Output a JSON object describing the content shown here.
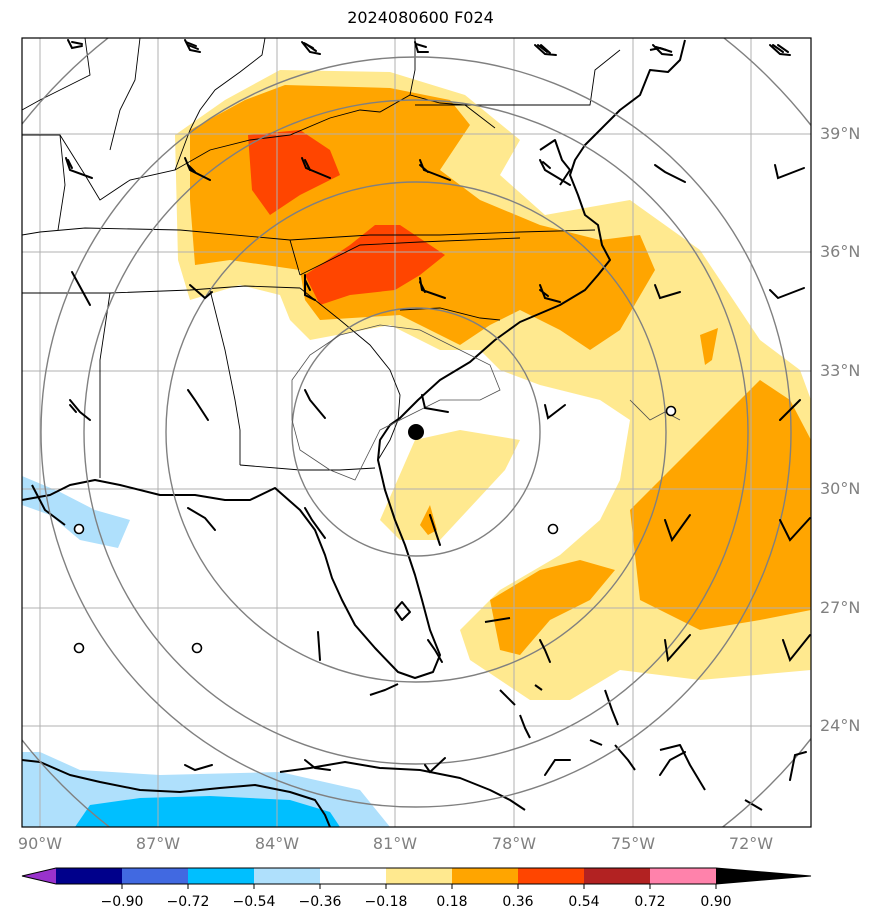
{
  "title": "2024080600 F024",
  "lat_labels": [
    "39°N",
    "36°N",
    "33°N",
    "30°N",
    "27°N",
    "24°N"
  ],
  "lon_labels": [
    "90°W",
    "87°W",
    "84°W",
    "81°W",
    "78°W",
    "75°W",
    "72°W"
  ],
  "colorbar": {
    "levels": [
      "−0.90",
      "−0.72",
      "−0.54",
      "−0.36",
      "−0.18",
      "0.18",
      "0.36",
      "0.54",
      "0.72",
      "0.90"
    ],
    "colors": [
      "#9932cc",
      "#00008b",
      "#4169e1",
      "#00bfff",
      "#afe0fc",
      "#ffffff",
      "#ffe98f",
      "#ffa500",
      "#ff4500",
      "#b22222",
      "#ff82ab"
    ]
  },
  "fill_colors": {
    "c018": "#ffe98f",
    "c036": "#ffa500",
    "c054": "#ff4500",
    "n018": "#afe0fc",
    "n036": "#00bfff"
  },
  "storm_center": {
    "label": "storm-center",
    "color": "#000000"
  }
}
